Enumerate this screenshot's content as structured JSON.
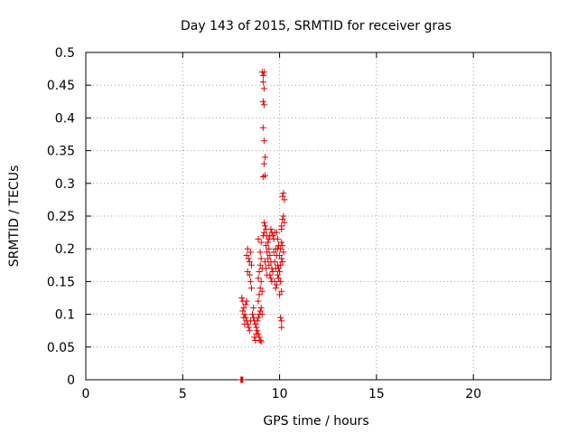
{
  "chart_data": {
    "type": "scatter",
    "title": "Day 143 of 2015, SRMTID for receiver gras",
    "xlabel": "GPS time / hours",
    "ylabel": "SRMTID / TECUs",
    "xlim": [
      0,
      24
    ],
    "ylim": [
      0,
      0.5
    ],
    "x_ticks": [
      "0",
      "5",
      "10",
      "15",
      "20"
    ],
    "y_ticks": [
      "0",
      "0.05",
      "0.1",
      "0.15",
      "0.2",
      "0.25",
      "0.3",
      "0.35",
      "0.4",
      "0.45",
      "0.5"
    ],
    "grid": true,
    "legend": "none",
    "marker": "plus",
    "color": "#e00000",
    "series": [
      {
        "points": [
          [
            8.0,
            0.0
          ],
          [
            8.02,
            0.0
          ],
          [
            8.05,
            0.0
          ],
          [
            8.08,
            0.0
          ],
          [
            8.1,
            0.0
          ],
          [
            8.05,
            0.125
          ],
          [
            8.1,
            0.12
          ],
          [
            8.15,
            0.11
          ],
          [
            8.2,
            0.1
          ],
          [
            8.25,
            0.095
          ],
          [
            8.3,
            0.09
          ],
          [
            8.35,
            0.085
          ],
          [
            8.4,
            0.08
          ],
          [
            8.45,
            0.075
          ],
          [
            8.5,
            0.09
          ],
          [
            8.1,
            0.105
          ],
          [
            8.15,
            0.095
          ],
          [
            8.2,
            0.085
          ],
          [
            8.25,
            0.115
          ],
          [
            8.3,
            0.12
          ],
          [
            8.3,
            0.19
          ],
          [
            8.35,
            0.2
          ],
          [
            8.4,
            0.185
          ],
          [
            8.45,
            0.18
          ],
          [
            8.5,
            0.195
          ],
          [
            8.55,
            0.175
          ],
          [
            8.35,
            0.165
          ],
          [
            8.45,
            0.16
          ],
          [
            8.5,
            0.15
          ],
          [
            8.55,
            0.14
          ],
          [
            8.6,
            0.1
          ],
          [
            8.65,
            0.095
          ],
          [
            8.7,
            0.09
          ],
          [
            8.75,
            0.085
          ],
          [
            8.8,
            0.08
          ],
          [
            8.85,
            0.075
          ],
          [
            8.9,
            0.07
          ],
          [
            8.95,
            0.065
          ],
          [
            9.0,
            0.06
          ],
          [
            9.05,
            0.058
          ],
          [
            8.7,
            0.065
          ],
          [
            8.75,
            0.06
          ],
          [
            8.8,
            0.07
          ],
          [
            8.85,
            0.09
          ],
          [
            8.9,
            0.095
          ],
          [
            8.95,
            0.1
          ],
          [
            9.0,
            0.105
          ],
          [
            9.05,
            0.11
          ],
          [
            9.1,
            0.1
          ],
          [
            8.65,
            0.11
          ],
          [
            8.9,
            0.12
          ],
          [
            8.95,
            0.13
          ],
          [
            9.0,
            0.14
          ],
          [
            9.05,
            0.15
          ],
          [
            9.1,
            0.135
          ],
          [
            8.95,
            0.165
          ],
          [
            9.0,
            0.175
          ],
          [
            9.05,
            0.185
          ],
          [
            9.1,
            0.17
          ],
          [
            8.9,
            0.155
          ],
          [
            8.9,
            0.215
          ],
          [
            9.0,
            0.195
          ],
          [
            9.05,
            0.21
          ],
          [
            9.15,
            0.22
          ],
          [
            9.2,
            0.225
          ],
          [
            9.1,
            0.47
          ],
          [
            9.15,
            0.465
          ],
          [
            9.2,
            0.47
          ],
          [
            9.15,
            0.455
          ],
          [
            9.2,
            0.445
          ],
          [
            9.15,
            0.425
          ],
          [
            9.2,
            0.42
          ],
          [
            9.15,
            0.385
          ],
          [
            9.2,
            0.365
          ],
          [
            9.25,
            0.34
          ],
          [
            9.2,
            0.33
          ],
          [
            9.15,
            0.31
          ],
          [
            9.25,
            0.312
          ],
          [
            9.2,
            0.24
          ],
          [
            9.25,
            0.235
          ],
          [
            9.3,
            0.23
          ],
          [
            9.35,
            0.22
          ],
          [
            9.4,
            0.21
          ],
          [
            9.45,
            0.2
          ],
          [
            9.5,
            0.19
          ],
          [
            9.55,
            0.18
          ],
          [
            9.6,
            0.17
          ],
          [
            9.65,
            0.165
          ],
          [
            9.3,
            0.205
          ],
          [
            9.35,
            0.195
          ],
          [
            9.4,
            0.185
          ],
          [
            9.45,
            0.175
          ],
          [
            9.5,
            0.16
          ],
          [
            9.55,
            0.155
          ],
          [
            9.6,
            0.15
          ],
          [
            9.3,
            0.17
          ],
          [
            9.35,
            0.16
          ],
          [
            9.25,
            0.18
          ],
          [
            9.6,
            0.225
          ],
          [
            9.65,
            0.22
          ],
          [
            9.7,
            0.215
          ],
          [
            9.75,
            0.225
          ],
          [
            9.8,
            0.2
          ],
          [
            9.85,
            0.19
          ],
          [
            9.7,
            0.195
          ],
          [
            9.75,
            0.18
          ],
          [
            9.8,
            0.17
          ],
          [
            9.9,
            0.175
          ],
          [
            9.75,
            0.15
          ],
          [
            9.8,
            0.14
          ],
          [
            9.85,
            0.145
          ],
          [
            9.9,
            0.16
          ],
          [
            9.95,
            0.155
          ],
          [
            10.0,
            0.165
          ],
          [
            10.05,
            0.15
          ],
          [
            10.1,
            0.135
          ],
          [
            10.0,
            0.13
          ],
          [
            9.95,
            0.17
          ],
          [
            9.9,
            0.2
          ],
          [
            9.95,
            0.205
          ],
          [
            10.0,
            0.19
          ],
          [
            10.05,
            0.2
          ],
          [
            10.1,
            0.21
          ],
          [
            10.15,
            0.205
          ],
          [
            10.2,
            0.195
          ],
          [
            10.1,
            0.185
          ],
          [
            10.05,
            0.175
          ],
          [
            10.15,
            0.18
          ],
          [
            10.1,
            0.235
          ],
          [
            10.15,
            0.245
          ],
          [
            10.2,
            0.25
          ],
          [
            10.25,
            0.24
          ],
          [
            10.1,
            0.23
          ],
          [
            10.15,
            0.28
          ],
          [
            10.2,
            0.285
          ],
          [
            10.25,
            0.275
          ],
          [
            10.05,
            0.095
          ],
          [
            10.1,
            0.09
          ],
          [
            10.1,
            0.08
          ],
          [
            9.5,
            0.22
          ],
          [
            9.55,
            0.23
          ],
          [
            9.45,
            0.215
          ],
          [
            9.85,
            0.225
          ],
          [
            9.9,
            0.215
          ]
        ]
      }
    ]
  }
}
